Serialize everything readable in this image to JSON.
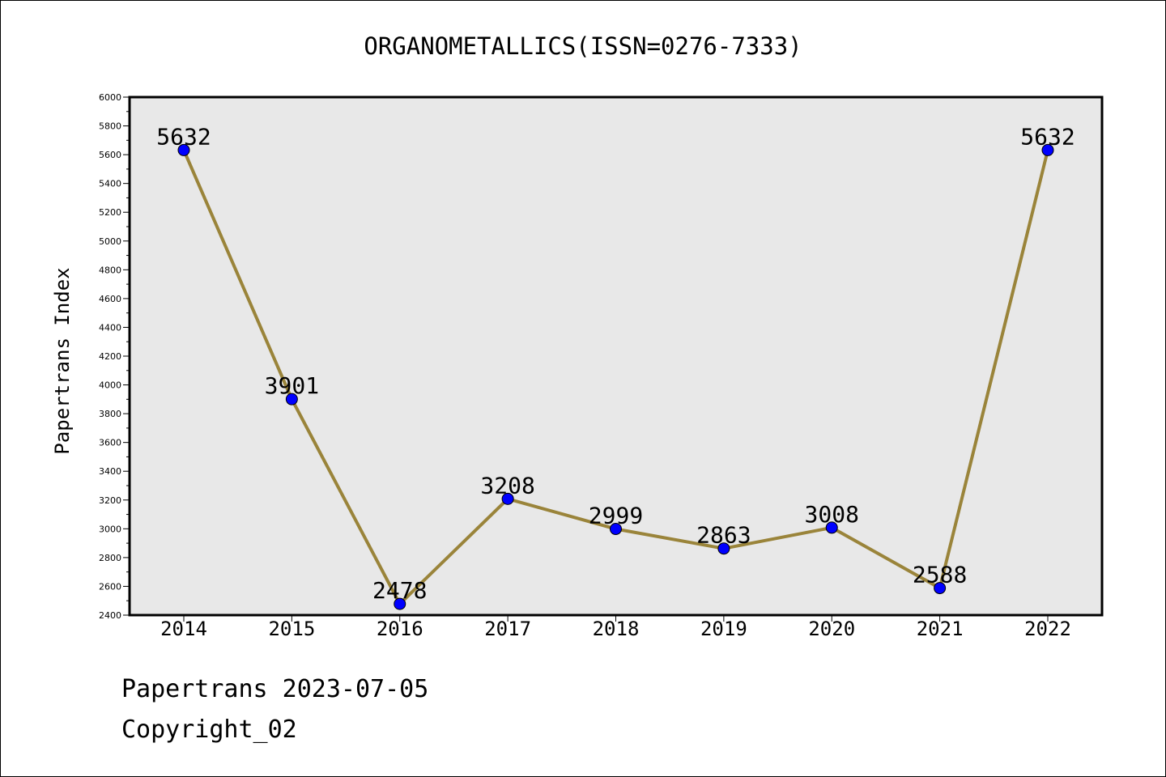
{
  "chart_data": {
    "type": "line",
    "title": "ORGANOMETALLICS(ISSN=0276-7333)",
    "xlabel": "",
    "ylabel": "Papertrans Index",
    "categories": [
      "2014",
      "2015",
      "2016",
      "2017",
      "2018",
      "2019",
      "2020",
      "2021",
      "2022"
    ],
    "series": [
      {
        "values": [
          5632,
          3901,
          2478,
          3208,
          2999,
          2863,
          3008,
          2588,
          5632
        ]
      }
    ],
    "ylim": [
      2400,
      6000
    ],
    "yticks": [
      2400,
      2600,
      2800,
      3000,
      3200,
      3400,
      3600,
      3800,
      4000,
      4200,
      4400,
      4600,
      4800,
      5000,
      5200,
      5400,
      5600,
      5800,
      6000
    ],
    "grid": false,
    "legend": "none",
    "data_labels": true,
    "colors": {
      "line": "#9a843a",
      "marker": "#0000ff",
      "plot_background": "#e8e8e8"
    }
  },
  "footer": {
    "date_text": "Papertrans 2023-07-05",
    "copyright_text": "Copyright_02"
  }
}
